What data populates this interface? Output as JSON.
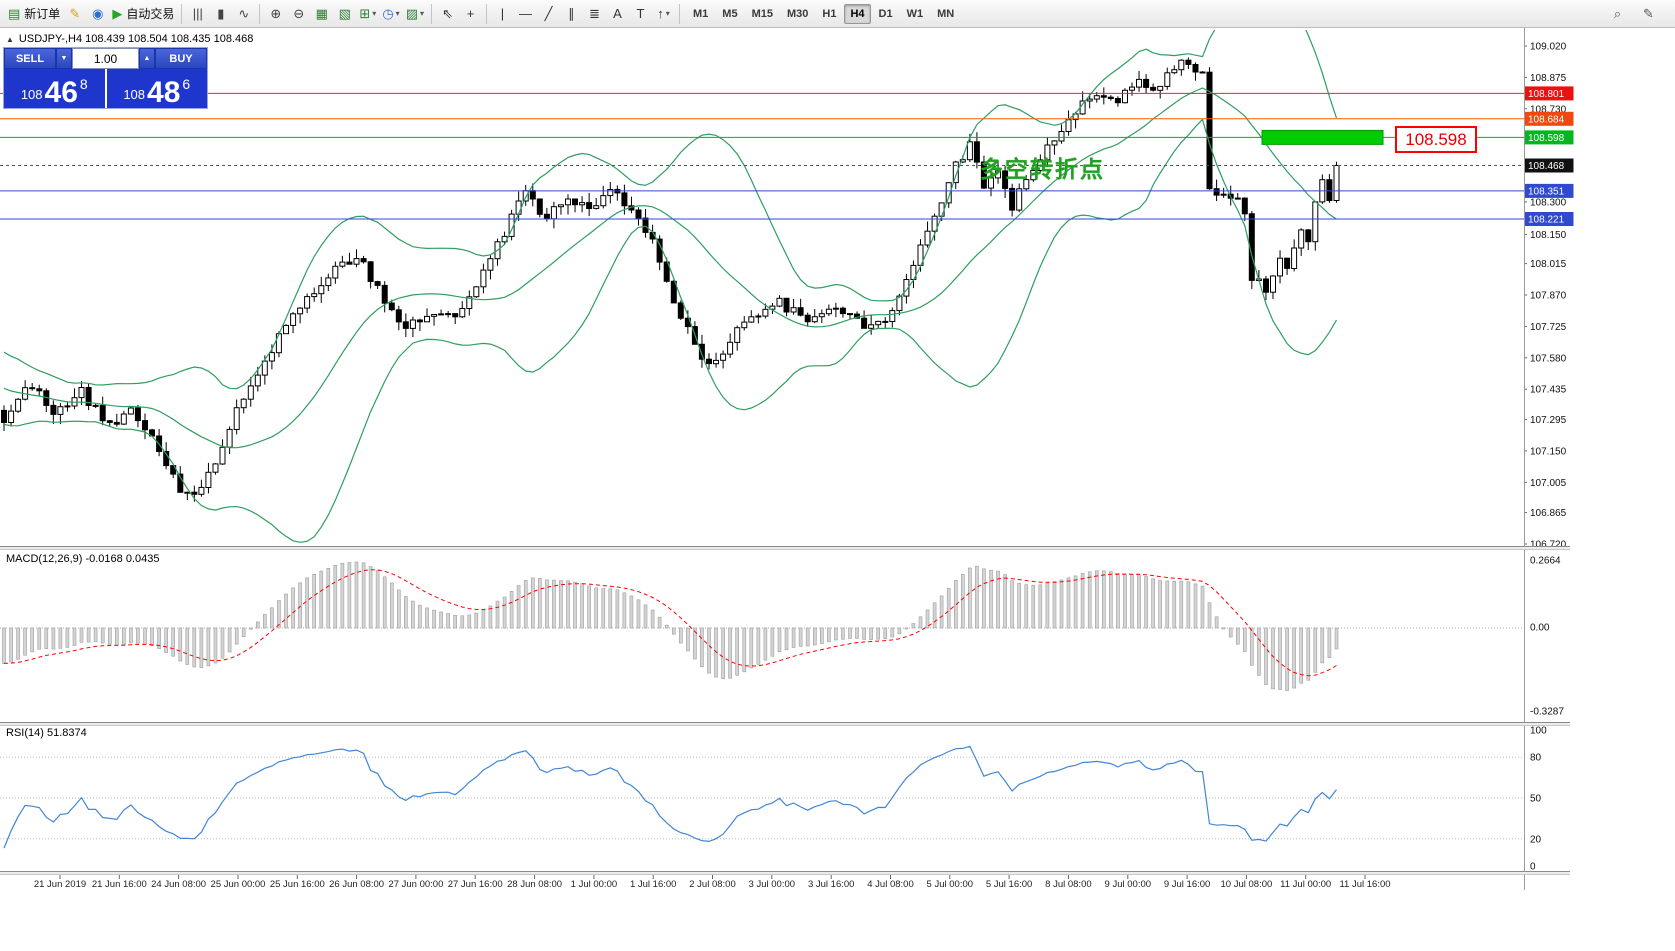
{
  "toolbar": {
    "new_order_label": "新订单",
    "autotrading_label": "自动交易",
    "items": [
      {
        "type": "button",
        "name": "new-order-button",
        "icon": "new-order-icon",
        "glyph": "▤",
        "color": "#2e7d32",
        "label_key": "new_order_label"
      },
      {
        "type": "button",
        "name": "metaeditor-button",
        "icon": "metaeditor-icon",
        "glyph": "✎",
        "color": "#d89d12"
      },
      {
        "type": "button",
        "name": "community-button",
        "icon": "community-icon",
        "glyph": "◉",
        "color": "#2b6fd4"
      },
      {
        "type": "button",
        "name": "autotrading-button",
        "icon": "autotrading-play-icon",
        "glyph": "▶",
        "color": "#27a327",
        "label_key": "autotrading_label"
      },
      {
        "type": "sep"
      },
      {
        "type": "button",
        "name": "bar-chart-button",
        "icon": "bar-chart-icon",
        "glyph": "|||",
        "color": "#444"
      },
      {
        "type": "button",
        "name": "candlestick-chart-button",
        "icon": "candlestick-chart-icon",
        "glyph": "▮",
        "color": "#444"
      },
      {
        "type": "button",
        "name": "line-chart-button",
        "icon": "line-chart-icon",
        "glyph": "∿",
        "color": "#444"
      },
      {
        "type": "sep"
      },
      {
        "type": "button",
        "name": "zoom-in-button",
        "icon": "zoom-in-icon",
        "glyph": "⊕",
        "color": "#444"
      },
      {
        "type": "button",
        "name": "zoom-out-button",
        "icon": "zoom-out-icon",
        "glyph": "⊖",
        "color": "#444"
      },
      {
        "type": "button",
        "name": "tile-windows-button",
        "icon": "tile-windows-icon",
        "glyph": "▦",
        "color": "#2e7d32"
      },
      {
        "type": "button",
        "name": "cascade-windows-button",
        "icon": "cascade-windows-icon",
        "glyph": "▧",
        "color": "#2e7d32"
      },
      {
        "type": "dropdown",
        "name": "indicators-button",
        "icon": "indicators-icon",
        "glyph": "⊞",
        "color": "#2e7d32"
      },
      {
        "type": "dropdown",
        "name": "periods-button",
        "icon": "clock-icon",
        "glyph": "◷",
        "color": "#2b6fd4"
      },
      {
        "type": "dropdown",
        "name": "templates-button",
        "icon": "template-icon",
        "glyph": "▨",
        "color": "#2e7d32"
      },
      {
        "type": "sep"
      },
      {
        "type": "button",
        "name": "cursor-button",
        "icon": "cursor-icon",
        "glyph": "⇖",
        "color": "#333"
      },
      {
        "type": "button",
        "name": "crosshair-button",
        "icon": "crosshair-icon",
        "glyph": "+",
        "color": "#333"
      },
      {
        "type": "sep"
      },
      {
        "type": "button",
        "name": "vertical-line-button",
        "icon": "vertical-line-icon",
        "glyph": "|",
        "color": "#333"
      },
      {
        "type": "button",
        "name": "horizontal-line-button",
        "icon": "horizontal-line-icon",
        "glyph": "—",
        "color": "#333"
      },
      {
        "type": "button",
        "name": "trendline-button",
        "icon": "trendline-icon",
        "glyph": "╱",
        "color": "#333"
      },
      {
        "type": "button",
        "name": "channel-button",
        "icon": "channel-icon",
        "glyph": "∥",
        "color": "#333"
      },
      {
        "type": "button",
        "name": "fibonacci-button",
        "icon": "fibonacci-icon",
        "glyph": "≣",
        "color": "#333"
      },
      {
        "type": "button",
        "name": "text-button",
        "icon": "text-icon",
        "glyph": "A",
        "color": "#333"
      },
      {
        "type": "button",
        "name": "text-label-button",
        "icon": "text-label-icon",
        "glyph": "T",
        "color": "#333"
      },
      {
        "type": "dropdown",
        "name": "arrows-button",
        "icon": "arrow-objects-icon",
        "glyph": "↑",
        "color": "#333"
      },
      {
        "type": "sep"
      }
    ],
    "timeframes": [
      "M1",
      "M5",
      "M15",
      "M30",
      "H1",
      "H4",
      "D1",
      "W1",
      "MN"
    ],
    "active_timeframe": "H4",
    "right_icons": [
      {
        "name": "search-button",
        "icon": "search-icon",
        "glyph": "⌕"
      },
      {
        "name": "quick-edit-button",
        "icon": "pencil-icon",
        "glyph": "✎"
      }
    ]
  },
  "chart_header": {
    "toggle_glyph": "▲",
    "text": "USDJPY-,H4 108.439 108.504 108.435 108.468"
  },
  "trade_panel": {
    "sell_label": "SELL",
    "buy_label": "BUY",
    "volume": "1.00",
    "spin_down_glyph": "▼",
    "spin_up_glyph": "▲",
    "sell_price_prefix": "108",
    "sell_price_big": "46",
    "sell_price_sup": "8",
    "buy_price_prefix": "108",
    "buy_price_big": "48",
    "buy_price_sup": "6"
  },
  "chart_data": {
    "type": "candlestick",
    "symbol": "USDJPY-",
    "timeframe": "H4",
    "ohlc": {
      "open": 108.439,
      "high": 108.504,
      "low": 108.435,
      "close": 108.468
    },
    "price_axis": {
      "min": 106.72,
      "max": 109.02,
      "labels": [
        "109.020",
        "108.875",
        "108.730",
        "108.300",
        "108.150",
        "108.015",
        "107.870",
        "107.725",
        "107.580",
        "107.435",
        "107.295",
        "107.150",
        "107.005",
        "106.865",
        "106.720"
      ]
    },
    "time_labels": [
      "21 Jun 2019",
      "21 Jun 16:00",
      "24 Jun 08:00",
      "25 Jun 00:00",
      "25 Jun 16:00",
      "26 Jun 08:00",
      "27 Jun 00:00",
      "27 Jun 16:00",
      "28 Jun 08:00",
      "1 Jul 00:00",
      "1 Jul 16:00",
      "2 Jul 08:00",
      "3 Jul 00:00",
      "3 Jul 16:00",
      "4 Jul 08:00",
      "5 Jul 00:00",
      "5 Jul 16:00",
      "8 Jul 08:00",
      "9 Jul 00:00",
      "9 Jul 16:00",
      "10 Jul 08:00",
      "11 Jul 00:00",
      "11 Jul 16:00"
    ],
    "candle_count": 230,
    "visible_start_index": 40,
    "waypoints": [
      [
        0,
        108.0
      ],
      [
        10,
        107.82
      ],
      [
        20,
        107.58
      ],
      [
        30,
        107.45
      ],
      [
        40,
        107.3
      ],
      [
        44,
        107.46
      ],
      [
        47,
        107.34
      ],
      [
        51,
        107.42
      ],
      [
        55,
        107.27
      ],
      [
        58,
        107.34
      ],
      [
        61,
        107.2
      ],
      [
        63,
        107.08
      ],
      [
        65,
        106.97
      ],
      [
        67,
        106.94
      ],
      [
        70,
        107.1
      ],
      [
        73,
        107.35
      ],
      [
        78,
        107.62
      ],
      [
        84,
        107.9
      ],
      [
        90,
        108.06
      ],
      [
        94,
        107.84
      ],
      [
        97,
        107.72
      ],
      [
        101,
        107.8
      ],
      [
        104,
        107.78
      ],
      [
        108,
        107.96
      ],
      [
        111,
        108.16
      ],
      [
        114,
        108.36
      ],
      [
        117,
        108.22
      ],
      [
        120,
        108.33
      ],
      [
        123,
        108.25
      ],
      [
        126,
        108.36
      ],
      [
        129,
        108.27
      ],
      [
        132,
        108.14
      ],
      [
        134,
        107.92
      ],
      [
        137,
        107.71
      ],
      [
        140,
        107.53
      ],
      [
        143,
        107.66
      ],
      [
        146,
        107.78
      ],
      [
        150,
        107.83
      ],
      [
        154,
        107.77
      ],
      [
        158,
        107.81
      ],
      [
        162,
        107.73
      ],
      [
        166,
        107.78
      ],
      [
        168,
        107.93
      ],
      [
        171,
        108.16
      ],
      [
        173,
        108.32
      ],
      [
        175,
        108.46
      ],
      [
        177,
        108.56
      ],
      [
        179,
        108.36
      ],
      [
        181,
        108.43
      ],
      [
        183,
        108.28
      ],
      [
        186,
        108.46
      ],
      [
        189,
        108.6
      ],
      [
        192,
        108.73
      ],
      [
        195,
        108.81
      ],
      [
        198,
        108.78
      ],
      [
        201,
        108.86
      ],
      [
        203,
        108.8
      ],
      [
        205,
        108.89
      ],
      [
        207,
        108.94
      ],
      [
        209,
        108.89
      ],
      [
        210,
        108.88
      ],
      [
        211,
        108.38
      ],
      [
        212,
        108.33
      ],
      [
        213,
        108.35
      ],
      [
        215,
        108.31
      ],
      [
        216,
        108.24
      ],
      [
        217,
        107.94
      ],
      [
        219,
        107.9
      ],
      [
        220,
        107.96
      ],
      [
        221,
        108.03
      ],
      [
        222,
        107.99
      ],
      [
        223,
        108.09
      ],
      [
        224,
        108.19
      ],
      [
        225,
        108.13
      ],
      [
        226,
        108.29
      ],
      [
        227,
        108.39
      ],
      [
        228,
        108.31
      ],
      [
        229,
        108.468
      ]
    ],
    "current_price": {
      "value": 108.468,
      "label": "108.468",
      "tag_bg": "#111111"
    },
    "levels": [
      {
        "price": 108.801,
        "label": "108.801",
        "color": "#ff2020",
        "tag_bg": "#ee1010"
      },
      {
        "price": 108.684,
        "label": "108.684",
        "color": "#ff5a00",
        "tag_bg": "#f04810"
      },
      {
        "price": 108.598,
        "label": "108.598",
        "color": "#00b400",
        "tag_bg": "#00b81e"
      },
      {
        "price": 108.351,
        "label": "108.351",
        "color": "#2f49d0",
        "tag_bg": "#2f49d0"
      },
      {
        "price": 108.221,
        "label": "108.221",
        "color": "#2f49d0",
        "tag_bg": "#2f49d0"
      }
    ],
    "indicators": {
      "bollinger": {
        "period": 20,
        "deviation": 2,
        "color": "#2f9e5e"
      },
      "macd": {
        "label": "MACD(12,26,9) -0.0168 0.0435",
        "value": -0.0168,
        "signal_value": 0.0435,
        "scale_labels": [
          "0.2664",
          "0.00",
          "-0.3287"
        ],
        "histogram_color": "#d4d4d4",
        "histogram_stroke": "#9e9e9e",
        "signal_color": "#ff0000"
      },
      "rsi": {
        "label": "RSI(14) 51.8374",
        "value": 51.8374,
        "scale_labels": [
          "100",
          "80",
          "50",
          "20",
          "0"
        ],
        "line_color": "#3f86d8"
      }
    },
    "objects": {
      "rectangle": {
        "price": 108.598,
        "fill": "#00cc00",
        "stroke": "#009900"
      },
      "callout": {
        "text": "108.598",
        "color": "#e60000"
      },
      "annotation": {
        "text": "多空转折点",
        "color": "#21a121"
      }
    }
  }
}
